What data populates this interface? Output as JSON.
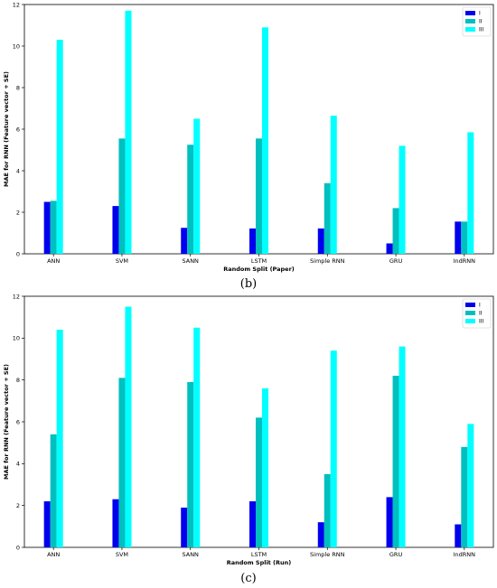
{
  "chart_data": [
    {
      "type": "bar",
      "panel_label": "(b)",
      "xlabel": "Random Split (Paper)",
      "ylabel": "MAE for RNN (Feature vector + SE)",
      "categories": [
        "ANN",
        "SVM",
        "SANN",
        "LSTM",
        "Simple RNN",
        "GRU",
        "IndRNN"
      ],
      "ylim": [
        0,
        12
      ],
      "yticks": [
        0,
        2,
        4,
        6,
        8,
        10,
        12
      ],
      "grid": false,
      "legend_position": "top-right",
      "series": [
        {
          "name": "I",
          "color": "#0000ee",
          "values": [
            2.5,
            2.3,
            1.25,
            1.22,
            1.22,
            0.5,
            1.55
          ]
        },
        {
          "name": "II",
          "color": "#00bfbf",
          "values": [
            2.55,
            5.55,
            5.25,
            5.55,
            3.4,
            2.2,
            1.55
          ]
        },
        {
          "name": "III",
          "color": "#00ffff",
          "values": [
            10.3,
            11.7,
            6.5,
            10.9,
            6.65,
            5.2,
            5.85
          ]
        }
      ]
    },
    {
      "type": "bar",
      "panel_label": "(c)",
      "xlabel": "Random Split (Run)",
      "ylabel": "MAE for RNN (Feature vector + SE)",
      "categories": [
        "ANN",
        "SVM",
        "SANN",
        "LSTM",
        "Simple RNN",
        "GRU",
        "IndRNN"
      ],
      "ylim": [
        0,
        12
      ],
      "yticks": [
        0,
        2,
        4,
        6,
        8,
        10,
        12
      ],
      "grid": false,
      "legend_position": "top-right",
      "series": [
        {
          "name": "I",
          "color": "#0000ee",
          "values": [
            2.2,
            2.3,
            1.9,
            2.2,
            1.2,
            2.4,
            1.1
          ]
        },
        {
          "name": "II",
          "color": "#00bfbf",
          "values": [
            5.4,
            8.1,
            7.9,
            6.2,
            3.5,
            8.2,
            4.8
          ]
        },
        {
          "name": "III",
          "color": "#00ffff",
          "values": [
            10.4,
            11.5,
            10.5,
            7.6,
            9.4,
            9.6,
            5.9
          ]
        }
      ]
    }
  ]
}
